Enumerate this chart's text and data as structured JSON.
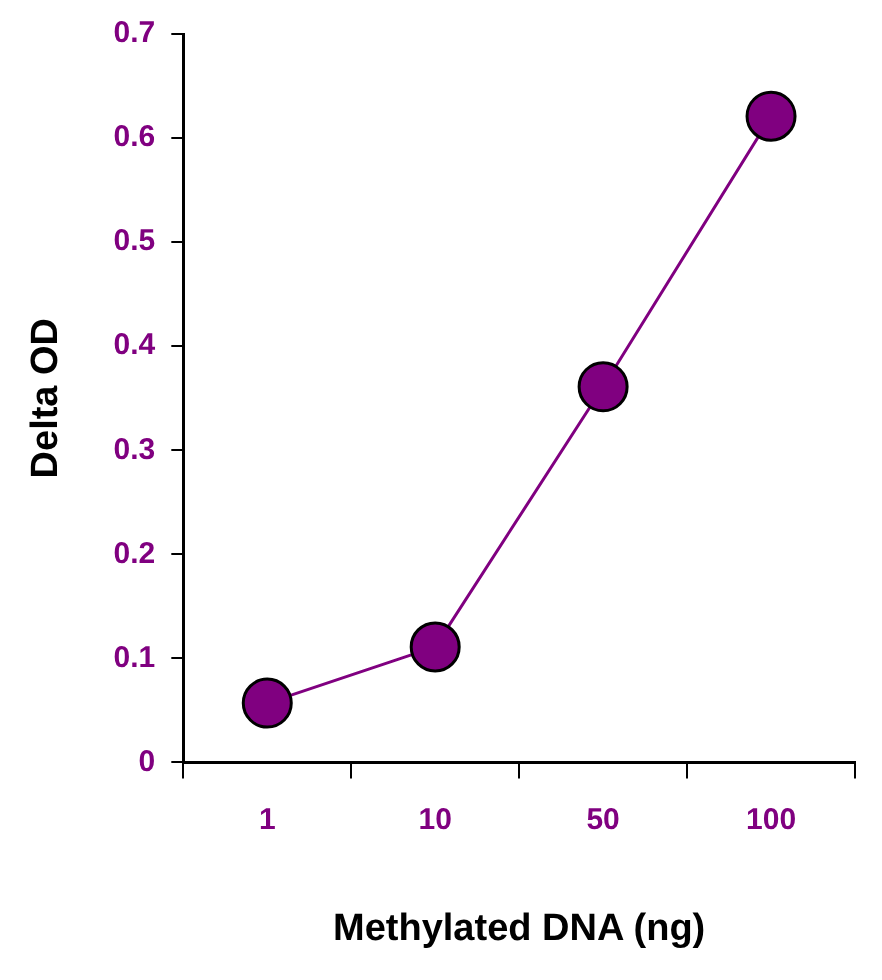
{
  "chart_data": {
    "type": "line",
    "xlabel": "Methylated DNA (ng)",
    "ylabel": "Delta OD",
    "categories": [
      "1",
      "10",
      "50",
      "100"
    ],
    "series": [
      {
        "color": "#800080",
        "values": [
          0.057,
          0.111,
          0.361,
          0.621
        ]
      }
    ],
    "ylim": [
      0,
      0.7
    ],
    "yticks": [
      0,
      0.1,
      0.2,
      0.3,
      0.4,
      0.5,
      0.6,
      0.7
    ],
    "grid": false,
    "legend": false,
    "marker": "circle",
    "line_style": "solid"
  }
}
